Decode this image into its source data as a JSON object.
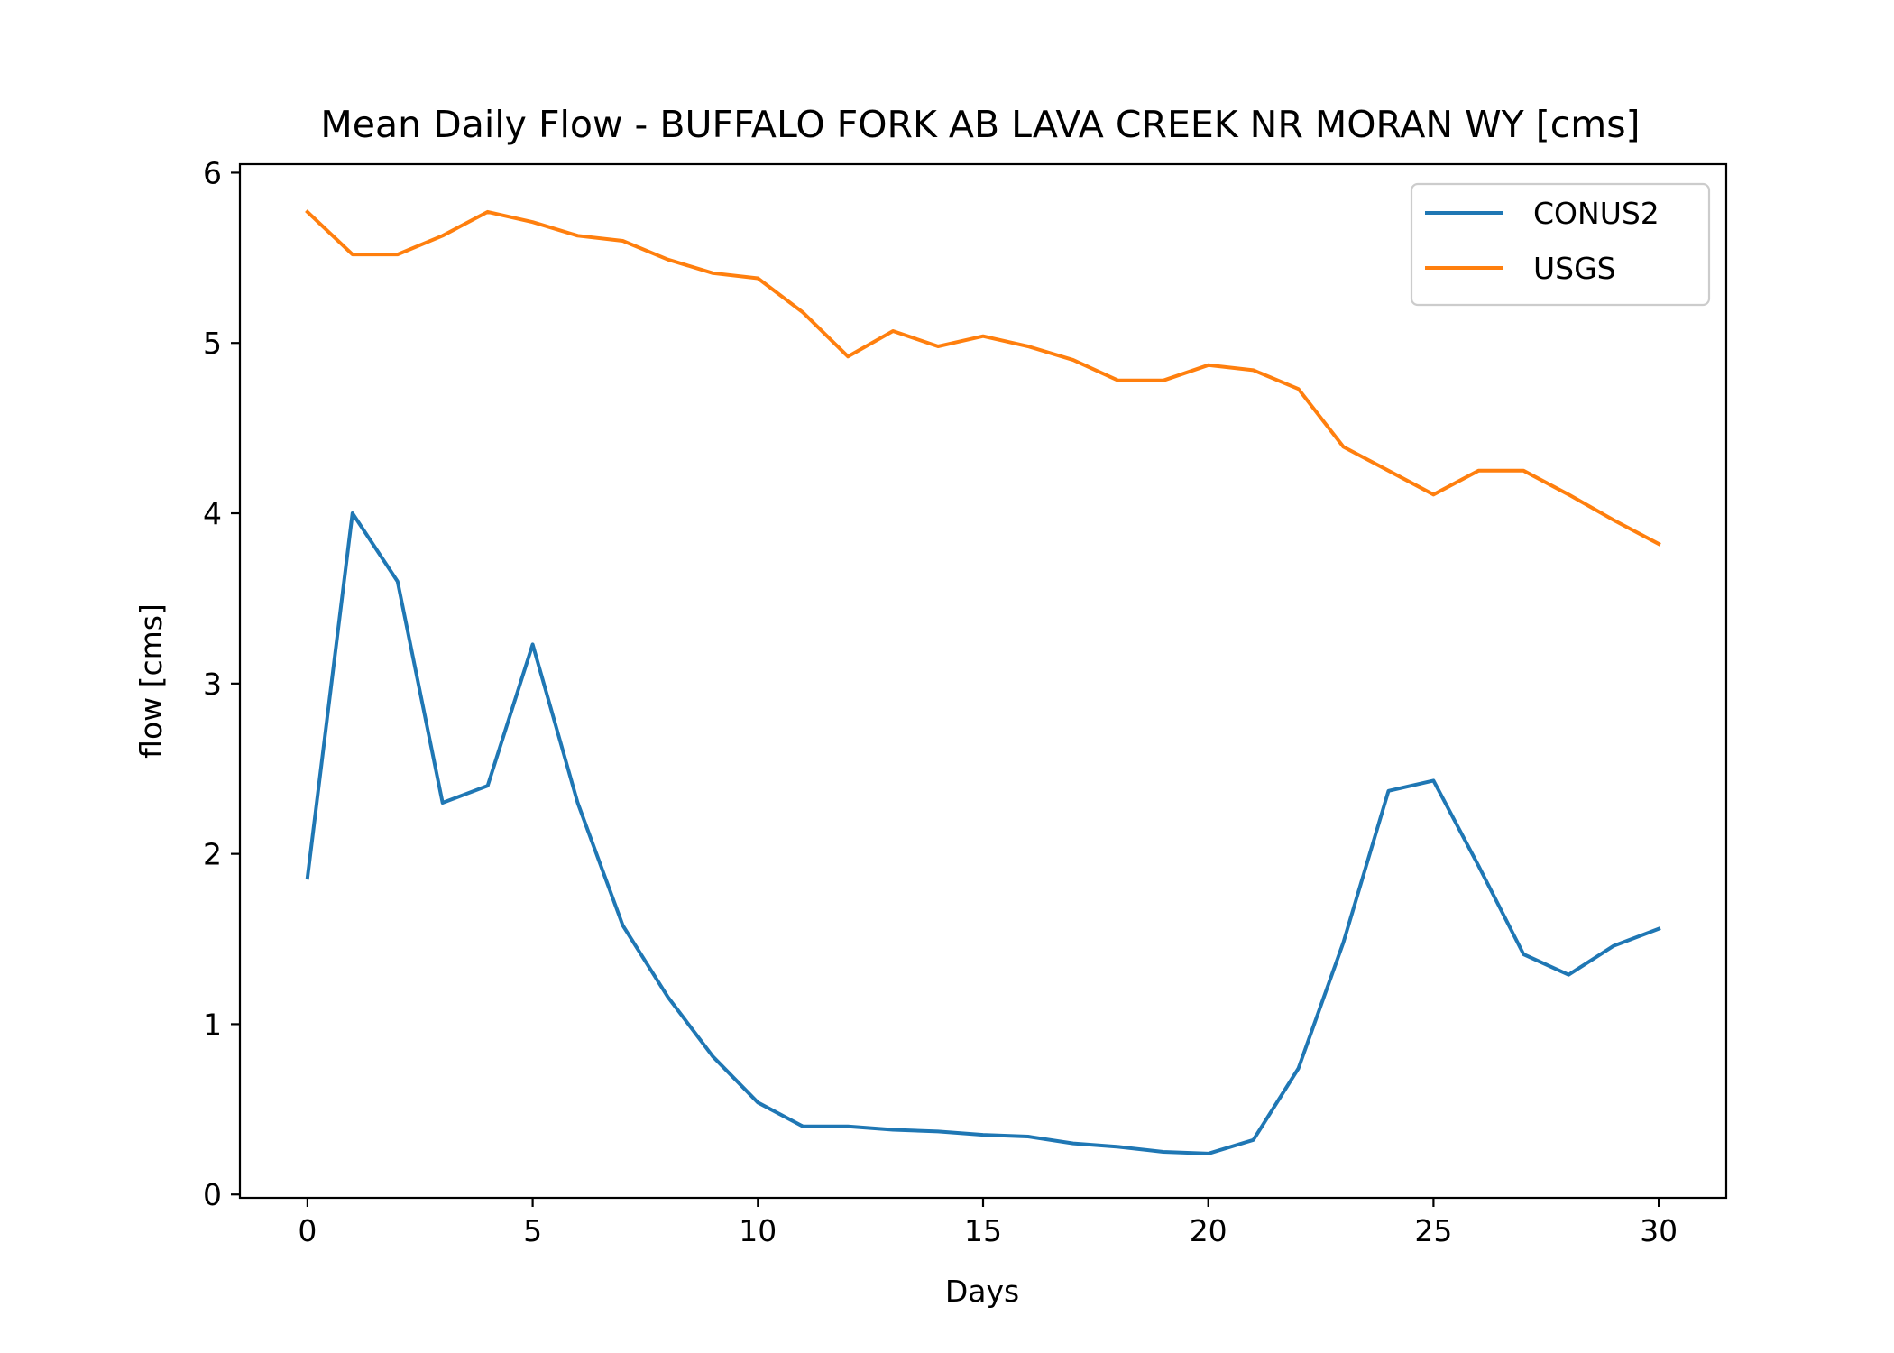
{
  "chart_data": {
    "type": "line",
    "title": "Mean Daily Flow - BUFFALO FORK AB LAVA CREEK NR MORAN WY [cms]",
    "xlabel": "Days",
    "ylabel": "flow [cms]",
    "xlim": [
      -1.5,
      31.5
    ],
    "ylim": [
      -0.02,
      6.05
    ],
    "xticks": [
      0,
      5,
      10,
      15,
      20,
      25,
      30
    ],
    "yticks": [
      0,
      1,
      2,
      3,
      4,
      5,
      6
    ],
    "grid": false,
    "legend_position": "top-right",
    "x": [
      0,
      1,
      2,
      3,
      4,
      5,
      6,
      7,
      8,
      9,
      10,
      11,
      12,
      13,
      14,
      15,
      16,
      17,
      18,
      19,
      20,
      21,
      22,
      23,
      24,
      25,
      26,
      27,
      28,
      29,
      30
    ],
    "series": [
      {
        "name": "CONUS2",
        "color": "#1f77b4",
        "values": [
          1.86,
          4.0,
          3.6,
          2.3,
          2.4,
          3.23,
          2.3,
          1.58,
          1.16,
          0.81,
          0.54,
          0.4,
          0.4,
          0.38,
          0.37,
          0.35,
          0.34,
          0.3,
          0.28,
          0.25,
          0.24,
          0.32,
          0.74,
          1.48,
          2.37,
          2.43,
          1.93,
          1.41,
          1.29,
          1.46,
          1.56
        ]
      },
      {
        "name": "USGS",
        "color": "#ff7f0e",
        "values": [
          5.77,
          5.52,
          5.52,
          5.63,
          5.77,
          5.71,
          5.63,
          5.6,
          5.49,
          5.41,
          5.38,
          5.18,
          4.92,
          5.07,
          4.98,
          5.04,
          4.98,
          4.9,
          4.78,
          4.78,
          4.87,
          4.84,
          4.73,
          4.39,
          4.25,
          4.11,
          4.25,
          4.25,
          4.11,
          3.96,
          3.82
        ]
      }
    ]
  }
}
